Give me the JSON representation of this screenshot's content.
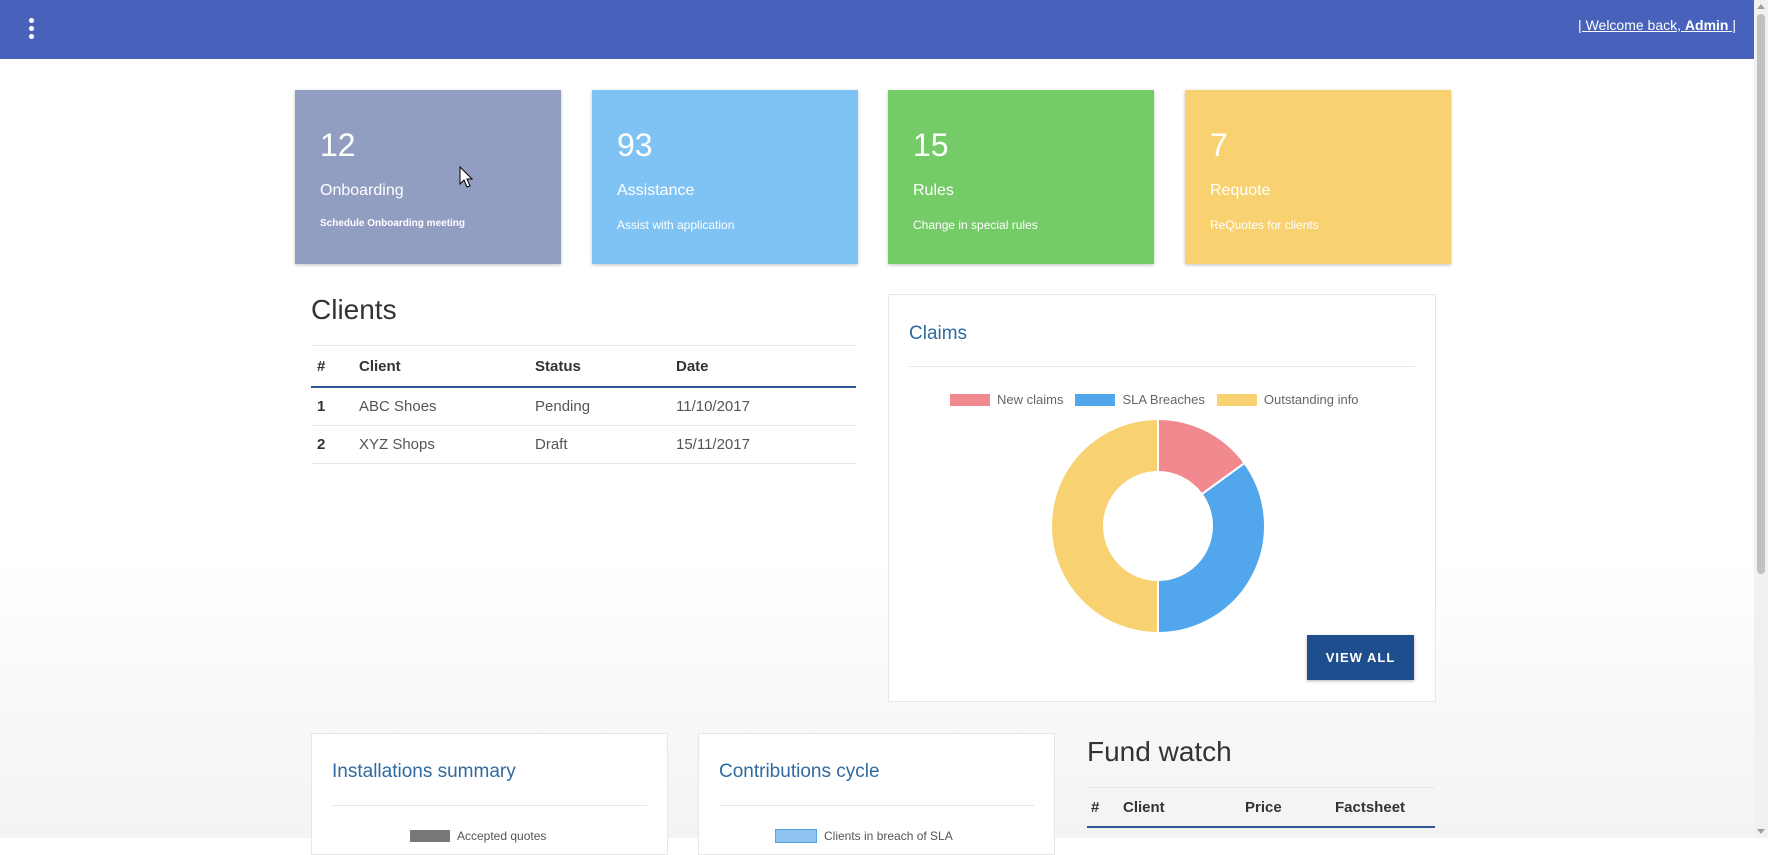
{
  "header": {
    "welcome_prefix": "| Welcome back, ",
    "welcome_user": "Admin",
    "welcome_suffix": " |",
    "menu_icon": "kebab-menu-icon",
    "bg_color": "#4862bc"
  },
  "cards": [
    {
      "number": "12",
      "title": "Onboarding",
      "subtitle": "Schedule Onboarding meeting",
      "color": "#929dc2"
    },
    {
      "number": "93",
      "title": "Assistance",
      "subtitle": "Assist with application",
      "color": "#7fc3f5"
    },
    {
      "number": "15",
      "title": "Rules",
      "subtitle": "Change in special rules",
      "color": "#76cb69"
    },
    {
      "number": "7",
      "title": "Requote",
      "subtitle": "ReQuotes for clients",
      "color": "#f8d271"
    }
  ],
  "clients": {
    "title": "Clients",
    "columns": [
      "#",
      "Client",
      "Status",
      "Date"
    ],
    "rows": [
      {
        "idx": "1",
        "client": "ABC Shoes",
        "status": "Pending",
        "date": "11/10/2017"
      },
      {
        "idx": "2",
        "client": "XYZ Shops",
        "status": "Draft",
        "date": "15/11/2017"
      }
    ]
  },
  "claims": {
    "title": "Claims",
    "button": "VIEW ALL"
  },
  "chart_data": {
    "type": "pie",
    "variant": "doughnut",
    "categories": [
      "New claims",
      "SLA Breaches",
      "Outstanding info"
    ],
    "values": [
      15,
      35,
      50
    ],
    "colors": [
      "#f08a8f",
      "#52a6ec",
      "#f8d271"
    ],
    "legend": "top"
  },
  "installations": {
    "title": "Installations summary",
    "legend_label": "Accepted quotes"
  },
  "contributions": {
    "title": "Contributions cycle",
    "legend_label": "Clients in breach of SLA"
  },
  "fund_watch": {
    "title": "Fund watch",
    "columns": [
      "#",
      "Client",
      "Price",
      "Factsheet"
    ]
  }
}
